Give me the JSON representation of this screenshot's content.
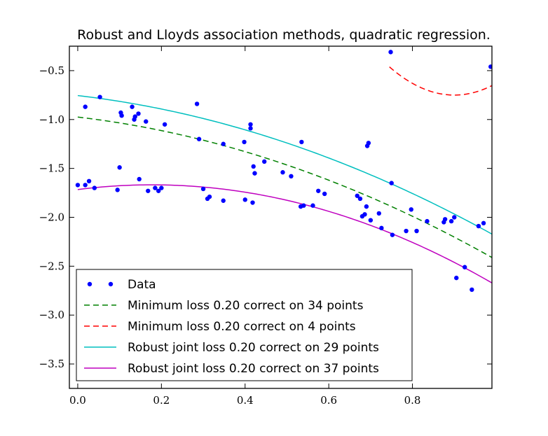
{
  "chart_data": {
    "type": "scatter",
    "title": "Robust and Lloyds association methods, quadratic regression.",
    "xlabel": "",
    "ylabel": "",
    "xlim": [
      -0.02,
      0.99
    ],
    "ylim": [
      -3.75,
      -0.25
    ],
    "xticks": [
      0.0,
      0.2,
      0.4,
      0.6,
      0.8
    ],
    "xtick_labels": [
      "0.0",
      "0.2",
      "0.4",
      "0.6",
      "0.8"
    ],
    "yticks": [
      -0.5,
      -1.0,
      -1.5,
      -2.0,
      -2.5,
      -3.0,
      -3.5
    ],
    "ytick_labels": [
      "−0.5",
      "−1.0",
      "−1.5",
      "−2.0",
      "−2.5",
      "−3.0",
      "−3.5"
    ],
    "grid": false,
    "legend_position": "lower-left",
    "series": [
      {
        "name": "Data",
        "kind": "points",
        "color": "#0000ff",
        "points": [
          [
            0.0,
            -1.67
          ],
          [
            0.018,
            -0.87
          ],
          [
            0.018,
            -1.67
          ],
          [
            0.027,
            -1.63
          ],
          [
            0.04,
            -1.7
          ],
          [
            0.053,
            -0.77
          ],
          [
            0.095,
            -1.72
          ],
          [
            0.1,
            -1.49
          ],
          [
            0.103,
            -0.93
          ],
          [
            0.105,
            -0.96
          ],
          [
            0.13,
            -0.87
          ],
          [
            0.135,
            -1.0
          ],
          [
            0.137,
            -0.97
          ],
          [
            0.145,
            -0.94
          ],
          [
            0.147,
            -1.61
          ],
          [
            0.163,
            -1.02
          ],
          [
            0.168,
            -1.73
          ],
          [
            0.185,
            -1.7
          ],
          [
            0.193,
            -1.73
          ],
          [
            0.2,
            -1.7
          ],
          [
            0.208,
            -1.05
          ],
          [
            0.285,
            -0.84
          ],
          [
            0.29,
            -1.2
          ],
          [
            0.3,
            -1.71
          ],
          [
            0.31,
            -1.81
          ],
          [
            0.315,
            -1.79
          ],
          [
            0.348,
            -1.25
          ],
          [
            0.348,
            -1.83
          ],
          [
            0.398,
            -1.23
          ],
          [
            0.4,
            -1.82
          ],
          [
            0.413,
            -1.05
          ],
          [
            0.413,
            -1.09
          ],
          [
            0.418,
            -1.85
          ],
          [
            0.42,
            -1.48
          ],
          [
            0.423,
            -1.55
          ],
          [
            0.446,
            -1.43
          ],
          [
            0.49,
            -1.54
          ],
          [
            0.51,
            -1.58
          ],
          [
            0.533,
            -1.89
          ],
          [
            0.535,
            -1.23
          ],
          [
            0.54,
            -1.88
          ],
          [
            0.562,
            -1.88
          ],
          [
            0.575,
            -1.73
          ],
          [
            0.59,
            -1.76
          ],
          [
            0.668,
            -1.78
          ],
          [
            0.675,
            -1.81
          ],
          [
            0.68,
            -1.99
          ],
          [
            0.686,
            -1.97
          ],
          [
            0.69,
            -1.89
          ],
          [
            0.692,
            -1.27
          ],
          [
            0.695,
            -1.24
          ],
          [
            0.7,
            -2.03
          ],
          [
            0.72,
            -1.96
          ],
          [
            0.726,
            -2.11
          ],
          [
            0.748,
            -0.31
          ],
          [
            0.75,
            -1.65
          ],
          [
            0.752,
            -2.18
          ],
          [
            0.785,
            -2.14
          ],
          [
            0.797,
            -1.92
          ],
          [
            0.81,
            -2.14
          ],
          [
            0.835,
            -2.04
          ],
          [
            0.875,
            -2.05
          ],
          [
            0.878,
            -2.02
          ],
          [
            0.893,
            -2.04
          ],
          [
            0.9,
            -2.0
          ],
          [
            0.905,
            -2.62
          ],
          [
            0.925,
            -2.51
          ],
          [
            0.942,
            -2.74
          ],
          [
            0.958,
            -2.09
          ],
          [
            0.97,
            -2.06
          ],
          [
            0.987,
            -0.46
          ]
        ]
      },
      {
        "name": "Minimum loss 0.20 correct on 34 points",
        "kind": "curve",
        "style": "dashed",
        "color": "#008000",
        "coefficients": [
          -0.975,
          -0.5,
          -0.96
        ],
        "x_range": [
          0.0,
          0.99
        ]
      },
      {
        "name": "Minimum loss 0.20 correct on 4 points",
        "kind": "curve",
        "style": "dashed",
        "color": "#ff0000",
        "coefficients": [
          -0.75,
          0.0,
          12.0
        ],
        "vertex_x": 0.9,
        "x_range": [
          0.745,
          0.99
        ]
      },
      {
        "name": "Robust joint loss 0.20 correct on 29 points",
        "kind": "curve",
        "style": "solid",
        "color": "#00bfbf",
        "coefficients": [
          -0.755,
          -0.5,
          -0.94
        ],
        "x_range": [
          0.0,
          0.99
        ]
      },
      {
        "name": "Robust joint loss 0.20 correct on 37 points",
        "kind": "curve",
        "style": "solid",
        "color": "#bf00bf",
        "coefficients": [
          -1.716,
          0.54,
          -1.52
        ],
        "x_range": [
          0.0,
          0.99
        ]
      }
    ]
  }
}
